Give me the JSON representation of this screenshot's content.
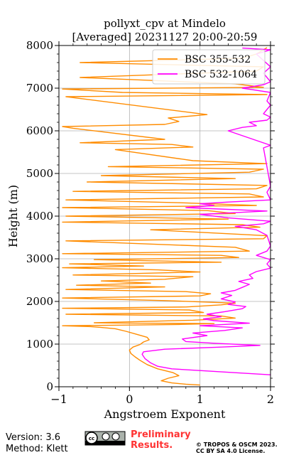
{
  "chart_data": {
    "type": "line",
    "title": "pollyxt_cpv at Mindelo",
    "subtitle": "[Averaged] 20231127 20:00-20:59",
    "xlabel": "Angstroem Exponent",
    "ylabel": "Height (m)",
    "xlim": [
      -1,
      2
    ],
    "ylim": [
      0,
      8000
    ],
    "xticks": [
      "−1",
      "0",
      "1",
      "2"
    ],
    "yticks": [
      "0",
      "1000",
      "2000",
      "3000",
      "4000",
      "5000",
      "6000",
      "7000",
      "8000"
    ],
    "grid": true,
    "legend_position": "top-right",
    "series": [
      {
        "name": "BSC 355-532",
        "color": "#ff8c00",
        "points": [
          [
            1.0,
            40
          ],
          [
            0.8,
            60
          ],
          [
            0.6,
            90
          ],
          [
            0.45,
            140
          ],
          [
            0.55,
            200
          ],
          [
            0.7,
            260
          ],
          [
            0.62,
            330
          ],
          [
            0.4,
            420
          ],
          [
            0.25,
            520
          ],
          [
            0.15,
            620
          ],
          [
            0.08,
            700
          ],
          [
            0.02,
            780
          ],
          [
            0.0,
            860
          ],
          [
            0.05,
            930
          ],
          [
            0.15,
            990
          ],
          [
            0.2,
            1050
          ],
          [
            0.28,
            1100
          ],
          [
            0.25,
            1160
          ],
          [
            0.1,
            1230
          ],
          [
            -0.05,
            1300
          ],
          [
            -0.2,
            1360
          ],
          [
            -0.4,
            1390
          ],
          [
            -0.55,
            1410
          ],
          [
            -0.95,
            1430
          ],
          [
            0.7,
            1460
          ],
          [
            1.2,
            1480
          ],
          [
            -0.5,
            1500
          ],
          [
            0.9,
            1560
          ],
          [
            1.5,
            1610
          ],
          [
            1.3,
            1660
          ],
          [
            -0.9,
            1700
          ],
          [
            1.05,
            1740
          ],
          [
            0.85,
            1800
          ],
          [
            -0.95,
            1840
          ],
          [
            0.8,
            1870
          ],
          [
            1.3,
            1920
          ],
          [
            1.5,
            1960
          ],
          [
            0.5,
            2020
          ],
          [
            -0.95,
            2080
          ],
          [
            1.0,
            2130
          ],
          [
            1.15,
            2180
          ],
          [
            0.8,
            2230
          ],
          [
            -0.9,
            2280
          ],
          [
            0.5,
            2340
          ],
          [
            -0.75,
            2380
          ],
          [
            0.3,
            2430
          ],
          [
            -0.4,
            2480
          ],
          [
            0.5,
            2520
          ],
          [
            0.9,
            2580
          ],
          [
            -0.8,
            2620
          ],
          [
            1.0,
            2690
          ],
          [
            0.4,
            2740
          ],
          [
            -0.95,
            2790
          ],
          [
            0.2,
            2830
          ],
          [
            -0.85,
            2880
          ],
          [
            1.3,
            2920
          ],
          [
            -0.5,
            2980
          ],
          [
            1.55,
            3030
          ],
          [
            1.3,
            3080
          ],
          [
            -0.95,
            3120
          ],
          [
            1.7,
            3180
          ],
          [
            1.5,
            3270
          ],
          [
            -0.9,
            3420
          ],
          [
            1.9,
            3470
          ],
          [
            1.95,
            3540
          ],
          [
            0.3,
            3680
          ],
          [
            1.85,
            3740
          ],
          [
            1.6,
            3800
          ],
          [
            -0.95,
            3860
          ],
          [
            1.4,
            3930
          ],
          [
            -0.9,
            4000
          ],
          [
            1.5,
            4060
          ],
          [
            1.1,
            4130
          ],
          [
            -0.95,
            4200
          ],
          [
            1.8,
            4250
          ],
          [
            0.8,
            4310
          ],
          [
            -0.9,
            4380
          ],
          [
            1.9,
            4450
          ],
          [
            1.7,
            4520
          ],
          [
            -0.8,
            4580
          ],
          [
            1.8,
            4640
          ],
          [
            1.95,
            4720
          ],
          [
            -0.6,
            4800
          ],
          [
            1.5,
            4880
          ],
          [
            -0.4,
            4950
          ],
          [
            1.7,
            5030
          ],
          [
            1.9,
            5100
          ],
          [
            -0.3,
            5160
          ],
          [
            1.95,
            5230
          ],
          [
            0.9,
            5300
          ],
          [
            -0.2,
            5560
          ],
          [
            0.9,
            5620
          ],
          [
            0.6,
            5680
          ],
          [
            -0.7,
            5720
          ],
          [
            0.5,
            5800
          ],
          [
            -0.8,
            6060
          ],
          [
            -0.95,
            6100
          ],
          [
            0.5,
            6150
          ],
          [
            0.7,
            6220
          ],
          [
            0.55,
            6300
          ],
          [
            1.1,
            6380
          ],
          [
            -0.9,
            6800
          ],
          [
            1.95,
            6850
          ],
          [
            -0.1,
            6900
          ],
          [
            -0.95,
            6980
          ],
          [
            1.9,
            7020
          ],
          [
            1.5,
            7100
          ],
          [
            -0.7,
            7250
          ],
          [
            1.8,
            7400
          ],
          [
            1.9,
            7500
          ],
          [
            -0.7,
            7600
          ],
          [
            1.6,
            7700
          ],
          [
            1.8,
            7800
          ],
          [
            1.95,
            7950
          ]
        ]
      },
      {
        "name": "BSC 532-1064",
        "color": "#ff00ff",
        "points": [
          [
            2.0,
            280
          ],
          [
            1.6,
            320
          ],
          [
            1.1,
            370
          ],
          [
            0.6,
            420
          ],
          [
            0.4,
            480
          ],
          [
            0.3,
            560
          ],
          [
            0.22,
            660
          ],
          [
            0.18,
            760
          ],
          [
            0.2,
            820
          ],
          [
            0.5,
            880
          ],
          [
            1.3,
            930
          ],
          [
            1.85,
            970
          ],
          [
            1.2,
            1020
          ],
          [
            0.8,
            1060
          ],
          [
            0.75,
            1120
          ],
          [
            1.1,
            1200
          ],
          [
            0.9,
            1260
          ],
          [
            1.35,
            1320
          ],
          [
            1.6,
            1380
          ],
          [
            1.0,
            1430
          ],
          [
            1.7,
            1490
          ],
          [
            1.2,
            1550
          ],
          [
            1.05,
            1590
          ],
          [
            1.3,
            1640
          ],
          [
            1.1,
            1700
          ],
          [
            1.35,
            1760
          ],
          [
            1.6,
            1830
          ],
          [
            1.65,
            1880
          ],
          [
            1.4,
            1930
          ],
          [
            1.5,
            1990
          ],
          [
            1.3,
            2060
          ],
          [
            1.45,
            2140
          ],
          [
            1.3,
            2200
          ],
          [
            1.5,
            2260
          ],
          [
            1.6,
            2330
          ],
          [
            1.7,
            2400
          ],
          [
            1.55,
            2470
          ],
          [
            1.75,
            2540
          ],
          [
            1.7,
            2620
          ],
          [
            1.8,
            2700
          ],
          [
            2.0,
            2780
          ],
          [
            1.95,
            2880
          ],
          [
            2.0,
            2980
          ],
          [
            1.8,
            3080
          ],
          [
            1.95,
            3180
          ],
          [
            2.0,
            3300
          ],
          [
            1.95,
            3550
          ],
          [
            1.8,
            3680
          ],
          [
            1.5,
            3760
          ],
          [
            1.9,
            3820
          ],
          [
            2.0,
            3880
          ],
          [
            1.4,
            3960
          ],
          [
            1.0,
            4040
          ],
          [
            1.95,
            4120
          ],
          [
            0.8,
            4200
          ],
          [
            1.2,
            4250
          ],
          [
            1.0,
            4290
          ],
          [
            1.4,
            4330
          ],
          [
            2.0,
            4380
          ],
          [
            1.95,
            4560
          ],
          [
            2.0,
            4700
          ],
          [
            1.9,
            5600
          ],
          [
            2.0,
            5660
          ],
          [
            1.4,
            6000
          ],
          [
            1.6,
            6080
          ],
          [
            1.8,
            6120
          ],
          [
            1.7,
            6200
          ],
          [
            1.95,
            6250
          ],
          [
            2.0,
            6320
          ],
          [
            1.9,
            6400
          ],
          [
            1.95,
            6500
          ],
          [
            2.0,
            6600
          ],
          [
            1.95,
            6700
          ],
          [
            2.0,
            6900
          ],
          [
            1.6,
            7000
          ],
          [
            1.9,
            7080
          ],
          [
            2.0,
            7150
          ],
          [
            1.9,
            7350
          ],
          [
            2.0,
            7500
          ],
          [
            1.8,
            7800
          ],
          [
            2.0,
            7900
          ],
          [
            1.6,
            7940
          ]
        ]
      }
    ]
  },
  "footer": {
    "version": "Version: 3.6",
    "method": "Method: Klett",
    "preliminary_1": "Preliminary",
    "preliminary_2": "Results.",
    "copyright_1": "© TROPOS & OSCM 2023.",
    "copyright_2": "CC BY SA 4.0 License."
  },
  "colors": {
    "preliminary": "#ff3333",
    "grid": "#b0b0b0"
  }
}
